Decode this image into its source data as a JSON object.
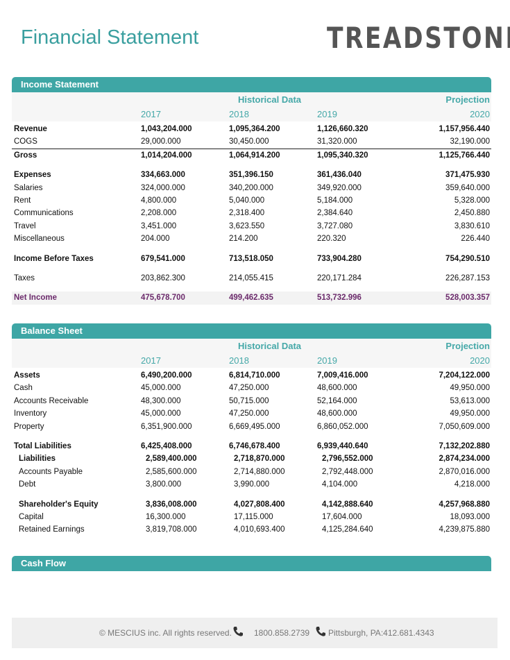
{
  "header": {
    "title": "Financial Statement",
    "logo": "TREADSTONE"
  },
  "income": {
    "title": "Income Statement",
    "historical": "Historical Data",
    "projection": "Projection",
    "years": [
      "2017",
      "2018",
      "2019",
      "2020"
    ],
    "groups": [
      [
        {
          "label": "Revenue",
          "bold": true,
          "values": [
            "1,043,204.000",
            "1,095,364.200",
            "1,126,660.320",
            "1,157,956.440"
          ]
        },
        {
          "label": "COGS",
          "values": [
            "29,000.000",
            "30,450.000",
            "31,320.000",
            "32,190.000"
          ]
        },
        {
          "label": "Gross",
          "bold": true,
          "line_above": true,
          "values": [
            "1,014,204.000",
            "1,064,914.200",
            "1,095,340.320",
            "1,125,766.440"
          ]
        }
      ],
      [
        {
          "label": "Expenses",
          "bold": true,
          "values": [
            "334,663.000",
            "351,396.150",
            "361,436.040",
            "371,475.930"
          ]
        },
        {
          "label": "Salaries",
          "values": [
            "324,000.000",
            "340,200.000",
            "349,920.000",
            "359,640.000"
          ]
        },
        {
          "label": "Rent",
          "values": [
            "4,800.000",
            "5,040.000",
            "5,184.000",
            "5,328.000"
          ]
        },
        {
          "label": "Communications",
          "values": [
            "2,208.000",
            "2,318.400",
            "2,384.640",
            "2,450.880"
          ]
        },
        {
          "label": "Travel",
          "values": [
            "3,451.000",
            "3,623.550",
            "3,727.080",
            "3,830.610"
          ]
        },
        {
          "label": "Miscellaneous",
          "values": [
            "204.000",
            "214.200",
            "220.320",
            "226.440"
          ]
        }
      ],
      [
        {
          "label": "Income Before Taxes",
          "bold": true,
          "values": [
            "679,541.000",
            "713,518.050",
            "733,904.280",
            "754,290.510"
          ]
        }
      ],
      [
        {
          "label": "Taxes",
          "values": [
            "203,862.300",
            "214,055.415",
            "220,171.284",
            "226,287.153"
          ]
        }
      ],
      [
        {
          "label": "Net Income",
          "highlight": true,
          "values": [
            "475,678.700",
            "499,462.635",
            "513,732.996",
            "528,003.357"
          ]
        }
      ]
    ]
  },
  "balance": {
    "title": "Balance Sheet",
    "historical": "Historical Data",
    "projection": "Projection",
    "years": [
      "2017",
      "2018",
      "2019",
      "2020"
    ],
    "groups": [
      [
        {
          "label": "Assets",
          "bold": true,
          "values": [
            "6,490,200.000",
            "6,814,710.000",
            "7,009,416.000",
            "7,204,122.000"
          ]
        },
        {
          "label": "Cash",
          "values": [
            "45,000.000",
            "47,250.000",
            "48,600.000",
            "49,950.000"
          ]
        },
        {
          "label": "Accounts Receivable",
          "values": [
            "48,300.000",
            "50,715.000",
            "52,164.000",
            "53,613.000"
          ]
        },
        {
          "label": "Inventory",
          "values": [
            "45,000.000",
            "47,250.000",
            "48,600.000",
            "49,950.000"
          ]
        },
        {
          "label": "Property",
          "values": [
            "6,351,900.000",
            "6,669,495.000",
            "6,860,052.000",
            "7,050,609.000"
          ]
        }
      ],
      [
        {
          "label": "Total Liabilities",
          "bold": true,
          "values": [
            "6,425,408.000",
            "6,746,678.400",
            "6,939,440.640",
            "7,132,202.880"
          ]
        },
        {
          "label": "Liabilities",
          "bold": true,
          "indent": true,
          "values": [
            "2,589,400.000",
            "2,718,870.000",
            "2,796,552.000",
            "2,874,234.000"
          ]
        },
        {
          "label": "Accounts Payable",
          "indent": true,
          "values": [
            "2,585,600.000",
            "2,714,880.000",
            "2,792,448.000",
            "2,870,016.000"
          ]
        },
        {
          "label": "Debt",
          "indent": true,
          "values": [
            "3,800.000",
            "3,990.000",
            "4,104.000",
            "4,218.000"
          ]
        }
      ],
      [
        {
          "label": "Shareholder's Equity",
          "bold": true,
          "indent": true,
          "values": [
            "3,836,008.000",
            "4,027,808.400",
            "4,142,888.640",
            "4,257,968.880"
          ]
        },
        {
          "label": "Capital",
          "indent": true,
          "values": [
            "16,300.000",
            "17,115.000",
            "17,604.000",
            "18,093.000"
          ]
        },
        {
          "label": "Retained Earnings",
          "indent": true,
          "values": [
            "3,819,708.000",
            "4,010,693.400",
            "4,125,284.640",
            "4,239,875.880"
          ]
        }
      ]
    ]
  },
  "cashflow": {
    "title": "Cash Flow"
  },
  "footer": {
    "copyright": "© MESCIUS inc. All rights reserved.",
    "phone": "1800.858.2739",
    "address": "Pittsburgh, PA:412.681.4343"
  }
}
